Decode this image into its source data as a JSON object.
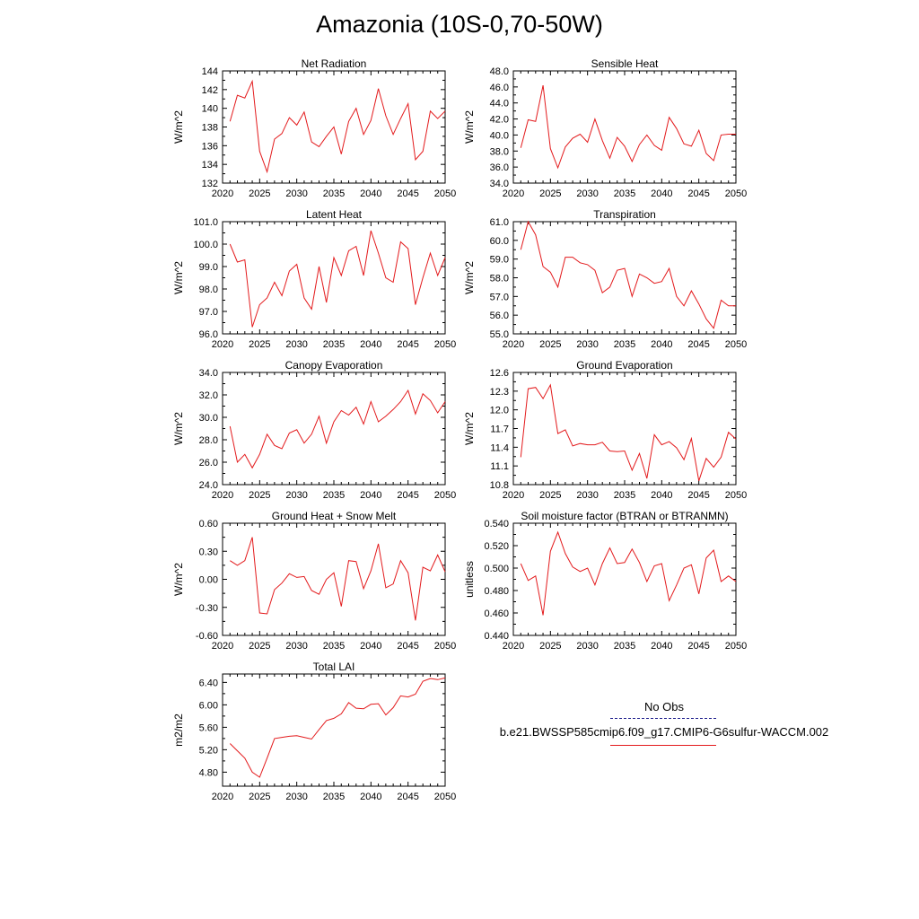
{
  "title": "Amazonia (10S-0,70-50W)",
  "legend": {
    "obs_label": "No Obs",
    "case_label": "b.e21.BWSSP585cmip6.f09_g17.CMIP6-G6sulfur-WACCM.002",
    "obs_color": "#1a1a8a",
    "case_color": "#e31a1c"
  },
  "chart_data": [
    {
      "type": "line",
      "title": "Net Radiation",
      "ylabel": "W/m^2",
      "xlim": [
        2020,
        2050
      ],
      "ylim": [
        132,
        144
      ],
      "xticks": [
        2020,
        2025,
        2030,
        2035,
        2040,
        2045,
        2050
      ],
      "yticks": [
        132,
        134,
        136,
        138,
        140,
        142,
        144
      ],
      "ytick_labels": [
        "132",
        "134",
        "136",
        "138",
        "140",
        "142",
        "144"
      ],
      "x": [
        2021,
        2022,
        2023,
        2024,
        2025,
        2026,
        2027,
        2028,
        2029,
        2030,
        2031,
        2032,
        2033,
        2034,
        2035,
        2036,
        2037,
        2038,
        2039,
        2040,
        2041,
        2042,
        2043,
        2044,
        2045,
        2046,
        2047,
        2048,
        2049,
        2050
      ],
      "series": [
        {
          "name": "b.e21.BWSSP585cmip6.f09_g17.CMIP6-G6sulfur-WACCM.002",
          "values": [
            138.6,
            141.4,
            141.1,
            142.9,
            135.4,
            133.2,
            136.7,
            137.3,
            139.0,
            138.2,
            139.6,
            136.4,
            135.9,
            137.0,
            138.0,
            135.1,
            138.6,
            140.0,
            137.2,
            138.7,
            142.1,
            139.2,
            137.2,
            138.9,
            140.5,
            134.5,
            135.4,
            139.7,
            138.9,
            139.7
          ]
        }
      ]
    },
    {
      "type": "line",
      "title": "Sensible Heat",
      "ylabel": "W/m^2",
      "xlim": [
        2020,
        2050
      ],
      "ylim": [
        34.0,
        48.0
      ],
      "xticks": [
        2020,
        2025,
        2030,
        2035,
        2040,
        2045,
        2050
      ],
      "yticks": [
        34,
        36,
        38,
        40,
        42,
        44,
        46,
        48
      ],
      "ytick_labels": [
        "34.0",
        "36.0",
        "38.0",
        "40.0",
        "42.0",
        "44.0",
        "46.0",
        "48.0"
      ],
      "x": [
        2021,
        2022,
        2023,
        2024,
        2025,
        2026,
        2027,
        2028,
        2029,
        2030,
        2031,
        2032,
        2033,
        2034,
        2035,
        2036,
        2037,
        2038,
        2039,
        2040,
        2041,
        2042,
        2043,
        2044,
        2045,
        2046,
        2047,
        2048,
        2049,
        2050
      ],
      "series": [
        {
          "name": "b.e21.BWSSP585cmip6.f09_g17.CMIP6-G6sulfur-WACCM.002",
          "values": [
            38.4,
            41.9,
            41.7,
            46.2,
            38.3,
            35.9,
            38.5,
            39.6,
            40.1,
            39.1,
            42.0,
            39.3,
            37.1,
            39.7,
            38.6,
            36.7,
            38.8,
            40.0,
            38.7,
            38.1,
            42.2,
            40.8,
            38.9,
            38.6,
            40.6,
            37.7,
            36.8,
            40.0,
            40.1,
            40.1
          ]
        }
      ]
    },
    {
      "type": "line",
      "title": "Latent Heat",
      "ylabel": "W/m^2",
      "xlim": [
        2020,
        2050
      ],
      "ylim": [
        96.0,
        101.0
      ],
      "xticks": [
        2020,
        2025,
        2030,
        2035,
        2040,
        2045,
        2050
      ],
      "yticks": [
        96,
        97,
        98,
        99,
        100,
        101
      ],
      "ytick_labels": [
        "96.0",
        "97.0",
        "98.0",
        "99.0",
        "100.0",
        "101.0"
      ],
      "x": [
        2021,
        2022,
        2023,
        2024,
        2025,
        2026,
        2027,
        2028,
        2029,
        2030,
        2031,
        2032,
        2033,
        2034,
        2035,
        2036,
        2037,
        2038,
        2039,
        2040,
        2041,
        2042,
        2043,
        2044,
        2045,
        2046,
        2047,
        2048,
        2049,
        2050
      ],
      "series": [
        {
          "name": "b.e21.BWSSP585cmip6.f09_g17.CMIP6-G6sulfur-WACCM.002",
          "values": [
            100.0,
            99.2,
            99.3,
            96.3,
            97.3,
            97.6,
            98.3,
            97.7,
            98.8,
            99.1,
            97.6,
            97.1,
            99.0,
            97.4,
            99.4,
            98.6,
            99.7,
            99.9,
            98.6,
            100.6,
            99.6,
            98.5,
            98.3,
            100.1,
            99.8,
            97.3,
            98.5,
            99.6,
            98.6,
            99.4
          ]
        }
      ]
    },
    {
      "type": "line",
      "title": "Transpiration",
      "ylabel": "W/m^2",
      "xlim": [
        2020,
        2050
      ],
      "ylim": [
        55.0,
        61.0
      ],
      "xticks": [
        2020,
        2025,
        2030,
        2035,
        2040,
        2045,
        2050
      ],
      "yticks": [
        55,
        56,
        57,
        58,
        59,
        60,
        61
      ],
      "ytick_labels": [
        "55.0",
        "56.0",
        "57.0",
        "58.0",
        "59.0",
        "60.0",
        "61.0"
      ],
      "x": [
        2021,
        2022,
        2023,
        2024,
        2025,
        2026,
        2027,
        2028,
        2029,
        2030,
        2031,
        2032,
        2033,
        2034,
        2035,
        2036,
        2037,
        2038,
        2039,
        2040,
        2041,
        2042,
        2043,
        2044,
        2045,
        2046,
        2047,
        2048,
        2049,
        2050
      ],
      "series": [
        {
          "name": "b.e21.BWSSP585cmip6.f09_g17.CMIP6-G6sulfur-WACCM.002",
          "values": [
            59.5,
            61.0,
            60.3,
            58.6,
            58.3,
            57.5,
            59.1,
            59.1,
            58.8,
            58.7,
            58.4,
            57.2,
            57.5,
            58.4,
            58.5,
            57.0,
            58.2,
            58.0,
            57.7,
            57.8,
            58.5,
            57.0,
            56.5,
            57.3,
            56.6,
            55.8,
            55.3,
            56.8,
            56.5,
            56.5
          ]
        }
      ]
    },
    {
      "type": "line",
      "title": "Canopy Evaporation",
      "ylabel": "W/m^2",
      "xlim": [
        2020,
        2050
      ],
      "ylim": [
        24.0,
        34.0
      ],
      "xticks": [
        2020,
        2025,
        2030,
        2035,
        2040,
        2045,
        2050
      ],
      "yticks": [
        24,
        26,
        28,
        30,
        32,
        34
      ],
      "ytick_labels": [
        "24.0",
        "26.0",
        "28.0",
        "30.0",
        "32.0",
        "34.0"
      ],
      "x": [
        2021,
        2022,
        2023,
        2024,
        2025,
        2026,
        2027,
        2028,
        2029,
        2030,
        2031,
        2032,
        2033,
        2034,
        2035,
        2036,
        2037,
        2038,
        2039,
        2040,
        2041,
        2042,
        2043,
        2044,
        2045,
        2046,
        2047,
        2048,
        2049,
        2050
      ],
      "series": [
        {
          "name": "b.e21.BWSSP585cmip6.f09_g17.CMIP6-G6sulfur-WACCM.002",
          "values": [
            29.2,
            26.0,
            26.7,
            25.5,
            26.7,
            28.5,
            27.5,
            27.2,
            28.6,
            28.9,
            27.7,
            28.5,
            30.1,
            27.7,
            29.6,
            30.6,
            30.2,
            30.9,
            29.4,
            31.4,
            29.6,
            30.1,
            30.7,
            31.4,
            32.4,
            30.3,
            32.1,
            31.5,
            30.4,
            31.4
          ]
        }
      ]
    },
    {
      "type": "line",
      "title": "Ground Evaporation",
      "ylabel": "W/m^2",
      "xlim": [
        2020,
        2050
      ],
      "ylim": [
        10.8,
        12.6
      ],
      "xticks": [
        2020,
        2025,
        2030,
        2035,
        2040,
        2045,
        2050
      ],
      "yticks": [
        10.8,
        11.1,
        11.4,
        11.7,
        12.0,
        12.3,
        12.6
      ],
      "ytick_labels": [
        "10.8",
        "11.1",
        "11.4",
        "11.7",
        "12.0",
        "12.3",
        "12.6"
      ],
      "x": [
        2021,
        2022,
        2023,
        2024,
        2025,
        2026,
        2027,
        2028,
        2029,
        2030,
        2031,
        2032,
        2033,
        2034,
        2035,
        2036,
        2037,
        2038,
        2039,
        2040,
        2041,
        2042,
        2043,
        2044,
        2045,
        2046,
        2047,
        2048,
        2049,
        2050
      ],
      "series": [
        {
          "name": "b.e21.BWSSP585cmip6.f09_g17.CMIP6-G6sulfur-WACCM.002",
          "values": [
            11.24,
            12.34,
            12.36,
            12.18,
            12.4,
            11.62,
            11.68,
            11.42,
            11.46,
            11.44,
            11.44,
            11.48,
            11.34,
            11.33,
            11.34,
            11.03,
            11.3,
            10.9,
            11.6,
            11.44,
            11.49,
            11.39,
            11.2,
            11.54,
            10.86,
            11.22,
            11.08,
            11.24,
            11.64,
            11.53
          ]
        }
      ]
    },
    {
      "type": "line",
      "title": "Ground Heat + Snow Melt",
      "ylabel": "W/m^2",
      "xlim": [
        2020,
        2050
      ],
      "ylim": [
        -0.6,
        0.6
      ],
      "xticks": [
        2020,
        2025,
        2030,
        2035,
        2040,
        2045,
        2050
      ],
      "yticks": [
        -0.6,
        -0.3,
        0.0,
        0.3,
        0.6
      ],
      "ytick_labels": [
        "-0.60",
        "-0.30",
        "0.00",
        "0.30",
        "0.60"
      ],
      "x": [
        2021,
        2022,
        2023,
        2024,
        2025,
        2026,
        2027,
        2028,
        2029,
        2030,
        2031,
        2032,
        2033,
        2034,
        2035,
        2036,
        2037,
        2038,
        2039,
        2040,
        2041,
        2042,
        2043,
        2044,
        2045,
        2046,
        2047,
        2048,
        2049,
        2050
      ],
      "series": [
        {
          "name": "b.e21.BWSSP585cmip6.f09_g17.CMIP6-G6sulfur-WACCM.002",
          "values": [
            0.2,
            0.15,
            0.2,
            0.45,
            -0.36,
            -0.37,
            -0.11,
            -0.04,
            0.06,
            0.02,
            0.03,
            -0.12,
            -0.16,
            0.0,
            0.07,
            -0.29,
            0.2,
            0.19,
            -0.1,
            0.09,
            0.38,
            -0.09,
            -0.05,
            0.2,
            0.07,
            -0.44,
            0.13,
            0.09,
            0.26,
            0.08
          ]
        }
      ]
    },
    {
      "type": "line",
      "title": "Soil moisture factor (BTRAN or BTRANMN)",
      "ylabel": "unitless",
      "xlim": [
        2020,
        2050
      ],
      "ylim": [
        0.44,
        0.54
      ],
      "xticks": [
        2020,
        2025,
        2030,
        2035,
        2040,
        2045,
        2050
      ],
      "yticks": [
        0.44,
        0.46,
        0.48,
        0.5,
        0.52,
        0.54
      ],
      "ytick_labels": [
        "0.440",
        "0.460",
        "0.480",
        "0.500",
        "0.520",
        "0.540"
      ],
      "x": [
        2021,
        2022,
        2023,
        2024,
        2025,
        2026,
        2027,
        2028,
        2029,
        2030,
        2031,
        2032,
        2033,
        2034,
        2035,
        2036,
        2037,
        2038,
        2039,
        2040,
        2041,
        2042,
        2043,
        2044,
        2045,
        2046,
        2047,
        2048,
        2049,
        2050
      ],
      "series": [
        {
          "name": "b.e21.BWSSP585cmip6.f09_g17.CMIP6-G6sulfur-WACCM.002",
          "values": [
            0.504,
            0.489,
            0.493,
            0.458,
            0.515,
            0.532,
            0.513,
            0.501,
            0.497,
            0.5,
            0.485,
            0.504,
            0.518,
            0.504,
            0.505,
            0.517,
            0.505,
            0.488,
            0.502,
            0.504,
            0.471,
            0.485,
            0.5,
            0.503,
            0.477,
            0.509,
            0.516,
            0.488,
            0.493,
            0.488
          ]
        }
      ]
    },
    {
      "type": "line",
      "title": "Total LAI",
      "ylabel": "m2/m2",
      "xlim": [
        2020,
        2050
      ],
      "ylim": [
        4.55,
        6.55
      ],
      "xticks": [
        2020,
        2025,
        2030,
        2035,
        2040,
        2045,
        2050
      ],
      "yticks": [
        4.8,
        5.2,
        5.6,
        6.0,
        6.4
      ],
      "ytick_labels": [
        "4.80",
        "5.20",
        "5.60",
        "6.00",
        "6.40"
      ],
      "x": [
        2021,
        2022,
        2023,
        2024,
        2025,
        2026,
        2027,
        2028,
        2029,
        2030,
        2031,
        2032,
        2033,
        2034,
        2035,
        2036,
        2037,
        2038,
        2039,
        2040,
        2041,
        2042,
        2043,
        2044,
        2045,
        2046,
        2047,
        2048,
        2049,
        2050
      ],
      "series": [
        {
          "name": "b.e21.BWSSP585cmip6.f09_g17.CMIP6-G6sulfur-WACCM.002",
          "values": [
            5.31,
            5.18,
            5.05,
            4.8,
            4.71,
            5.05,
            5.4,
            5.42,
            5.44,
            5.45,
            5.42,
            5.39,
            5.56,
            5.72,
            5.76,
            5.84,
            6.04,
            5.94,
            5.93,
            6.01,
            6.02,
            5.82,
            5.95,
            6.16,
            6.14,
            6.19,
            6.42,
            6.47,
            6.45,
            6.48
          ]
        }
      ]
    }
  ]
}
